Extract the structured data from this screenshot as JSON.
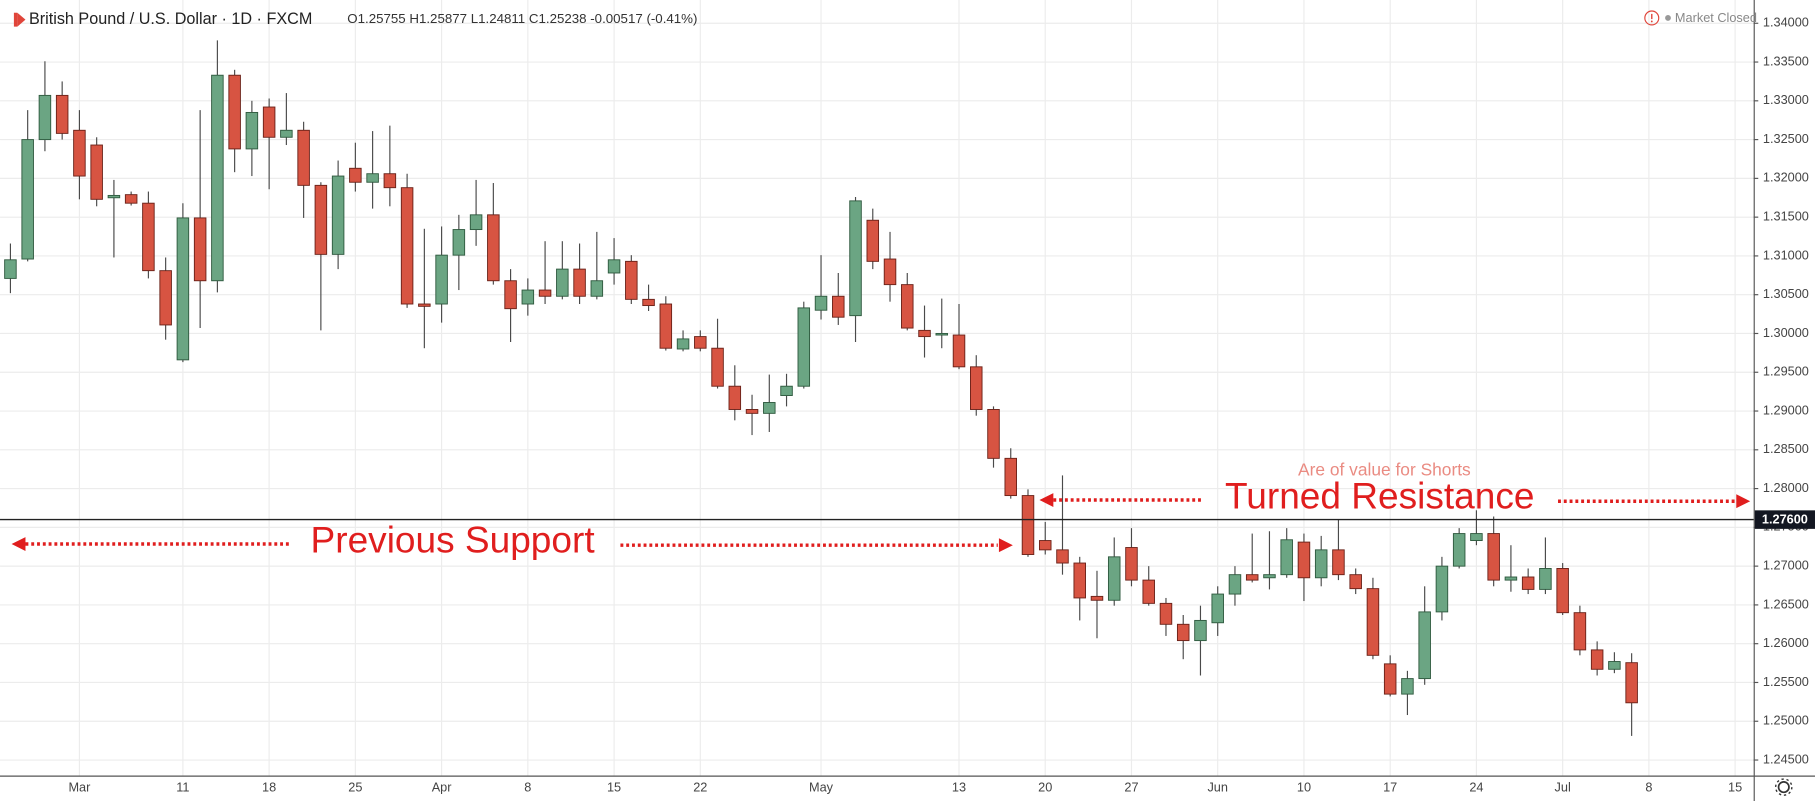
{
  "header": {
    "symbol": "British Pound / U.S. Dollar · 1D · FXCM",
    "ohlc": "O1.25755 H1.25877 L1.24811 C1.25238 -0.00517 (-0.41%)",
    "status": "Market Closed"
  },
  "chart_data": {
    "type": "candlestick",
    "categories": [
      null,
      null,
      null,
      null,
      "Mar",
      null,
      null,
      null,
      null,
      null,
      "11",
      null,
      null,
      null,
      null,
      "18",
      null,
      null,
      null,
      null,
      "25",
      null,
      null,
      null,
      null,
      "Apr",
      null,
      null,
      null,
      null,
      "8",
      null,
      null,
      null,
      null,
      "15",
      null,
      null,
      null,
      null,
      "22",
      null,
      null,
      null,
      null,
      null,
      null,
      "May",
      null,
      null,
      null,
      null,
      null,
      null,
      null,
      "13",
      null,
      null,
      null,
      null,
      "20",
      null,
      null,
      null,
      null,
      "27",
      null,
      null,
      null,
      null,
      "Jun",
      null,
      null,
      null,
      null,
      "10",
      null,
      null,
      null,
      null,
      "17",
      null,
      null,
      null,
      null,
      "24",
      null,
      null,
      null,
      null,
      "Jul",
      null,
      null,
      null,
      null,
      "8",
      null,
      null,
      null,
      null,
      "15"
    ],
    "open": [
      1.3071,
      1.3096,
      1.325,
      1.3307,
      1.3262,
      1.3243,
      1.3175,
      1.3179,
      1.3168,
      1.3081,
      1.2966,
      1.3149,
      1.3068,
      1.3333,
      1.3238,
      1.3292,
      1.3253,
      1.3262,
      1.3191,
      1.3102,
      1.3213,
      1.3195,
      1.3206,
      1.3188,
      1.3038,
      1.3038,
      1.3101,
      1.3134,
      1.3153,
      1.3068,
      1.3038,
      1.3056,
      1.3048,
      1.3083,
      1.3048,
      1.3078,
      1.3093,
      1.3044,
      1.3038,
      1.298,
      1.2996,
      1.2981,
      1.2932,
      1.2902,
      1.2897,
      1.292,
      1.2932,
      1.303,
      1.3048,
      1.3023,
      1.3146,
      1.3096,
      1.3063,
      1.3004,
      1.2998,
      1.2998,
      1.2957,
      1.2902,
      1.2839,
      1.2791,
      1.2733,
      1.2721,
      1.2704,
      1.2661,
      1.2656,
      1.2724,
      1.2682,
      1.2652,
      1.2625,
      1.2604,
      1.2627,
      1.2664,
      1.2689,
      1.2685,
      1.2689,
      1.2731,
      1.2685,
      1.2721,
      1.2689,
      1.2671,
      1.2574,
      1.2535,
      1.2555,
      1.2641,
      1.27,
      1.2733,
      1.2742,
      1.2682,
      1.2686,
      1.267,
      1.2697,
      1.264,
      1.2592,
      1.2567,
      1.25755,
      null,
      null,
      null,
      null,
      null,
      null
    ],
    "high": [
      1.3116,
      1.3288,
      1.3351,
      1.3325,
      1.3288,
      1.3253,
      1.3198,
      1.3183,
      1.3183,
      1.3098,
      1.3168,
      1.3288,
      1.3378,
      1.334,
      1.33,
      1.3303,
      1.331,
      1.3273,
      1.3195,
      1.3223,
      1.3246,
      1.3261,
      1.3268,
      1.3206,
      1.3135,
      1.3138,
      1.3153,
      1.3198,
      1.3194,
      1.3083,
      1.3071,
      1.3119,
      1.3119,
      1.3116,
      1.3131,
      1.3123,
      1.3101,
      1.3063,
      1.3048,
      1.3004,
      1.3004,
      1.3019,
      1.2959,
      1.2921,
      1.2947,
      1.2948,
      1.3041,
      1.3101,
      1.3078,
      1.3176,
      1.3161,
      1.3131,
      1.3078,
      1.3036,
      1.3045,
      1.3038,
      1.2972,
      1.2906,
      1.2852,
      1.2799,
      1.2757,
      1.2817,
      1.2712,
      1.2694,
      1.2737,
      1.2749,
      1.27,
      1.2659,
      1.2637,
      1.2649,
      1.2674,
      1.27,
      1.2742,
      1.2745,
      1.2749,
      1.2742,
      1.2739,
      1.276,
      1.2697,
      1.2685,
      1.2585,
      1.2565,
      1.2674,
      1.2712,
      1.2749,
      1.2772,
      1.2764,
      1.2727,
      1.2697,
      1.2737,
      1.2704,
      1.2649,
      1.2603,
      1.2589,
      1.25877,
      null,
      null,
      null,
      null,
      null,
      null
    ],
    "low": [
      1.3052,
      1.3093,
      1.3235,
      1.325,
      1.3173,
      1.3164,
      1.3098,
      1.3165,
      1.3071,
      1.2992,
      1.2963,
      1.3007,
      1.3053,
      1.3208,
      1.3203,
      1.3186,
      1.3243,
      1.3149,
      1.3004,
      1.3083,
      1.3183,
      1.3161,
      1.3164,
      1.3033,
      1.2981,
      1.3014,
      1.3056,
      1.3113,
      1.3063,
      1.2989,
      1.3023,
      1.3038,
      1.3044,
      1.3038,
      1.3044,
      1.3063,
      1.3038,
      1.3029,
      1.2978,
      1.2977,
      1.2977,
      1.2929,
      1.2888,
      1.2869,
      1.2873,
      1.2906,
      1.2929,
      1.3018,
      1.3011,
      1.2989,
      1.3083,
      1.3041,
      1.3004,
      1.2969,
      1.2981,
      1.2954,
      1.2894,
      1.2827,
      1.2787,
      1.2712,
      1.2715,
      1.2689,
      1.263,
      1.2607,
      1.2649,
      1.2674,
      1.2649,
      1.261,
      1.258,
      1.2559,
      1.261,
      1.2649,
      1.2679,
      1.267,
      1.2685,
      1.2655,
      1.2674,
      1.2682,
      1.2664,
      1.258,
      1.2532,
      1.2508,
      1.2547,
      1.263,
      1.2697,
      1.2727,
      1.2674,
      1.2667,
      1.2664,
      1.2664,
      1.2637,
      1.2585,
      1.2559,
      1.2562,
      1.24811,
      null,
      null,
      null,
      null,
      null,
      null
    ],
    "close": [
      1.3095,
      1.325,
      1.3307,
      1.3258,
      1.3203,
      1.3173,
      1.3178,
      1.3168,
      1.3081,
      1.3011,
      1.3149,
      1.3068,
      1.3333,
      1.3238,
      1.3285,
      1.3253,
      1.3262,
      1.3191,
      1.3102,
      1.3203,
      1.3195,
      1.3206,
      1.3188,
      1.3038,
      1.3035,
      1.3101,
      1.3134,
      1.3153,
      1.3068,
      1.3032,
      1.3056,
      1.3048,
      1.3083,
      1.3048,
      1.3068,
      1.3095,
      1.3044,
      1.3036,
      1.2981,
      1.2993,
      1.2981,
      1.2932,
      1.2902,
      1.2897,
      1.2911,
      1.2932,
      1.3033,
      1.3048,
      1.3021,
      1.3171,
      1.3093,
      1.3063,
      1.3007,
      1.2996,
      1.3,
      1.2957,
      1.2902,
      1.2839,
      1.2791,
      1.2715,
      1.2721,
      1.2704,
      1.2659,
      1.2656,
      1.2712,
      1.2682,
      1.2652,
      1.2625,
      1.2604,
      1.263,
      1.2664,
      1.2689,
      1.2682,
      1.2689,
      1.2734,
      1.2685,
      1.2721,
      1.2689,
      1.2671,
      1.2585,
      1.2535,
      1.2555,
      1.2641,
      1.27,
      1.2742,
      1.2742,
      1.2682,
      1.2686,
      1.267,
      1.2697,
      1.264,
      1.2592,
      1.2567,
      1.2577,
      1.25238,
      null,
      null,
      null,
      null,
      null,
      null
    ],
    "up_color": "#6ba583",
    "down_color": "#d75442",
    "wick_color": "#4a4a4a",
    "ylim": [
      1.243,
      1.343
    ],
    "yticks": [
      {
        "value": 1.245,
        "label": "1.24500"
      },
      {
        "value": 1.25,
        "label": "1.25000"
      },
      {
        "value": 1.255,
        "label": "1.25500"
      },
      {
        "value": 1.26,
        "label": "1.26000"
      },
      {
        "value": 1.265,
        "label": "1.26500"
      },
      {
        "value": 1.27,
        "label": "1.27000"
      },
      {
        "value": 1.275,
        "label": "1.27500"
      },
      {
        "value": 1.28,
        "label": "1.28000"
      },
      {
        "value": 1.285,
        "label": "1.28500"
      },
      {
        "value": 1.29,
        "label": "1.29000"
      },
      {
        "value": 1.295,
        "label": "1.29500"
      },
      {
        "value": 1.3,
        "label": "1.30000"
      },
      {
        "value": 1.305,
        "label": "1.30500"
      },
      {
        "value": 1.31,
        "label": "1.31000"
      },
      {
        "value": 1.315,
        "label": "1.31500"
      },
      {
        "value": 1.32,
        "label": "1.32000"
      },
      {
        "value": 1.325,
        "label": "1.32500"
      },
      {
        "value": 1.33,
        "label": "1.33000"
      },
      {
        "value": 1.335,
        "label": "1.33500"
      },
      {
        "value": 1.34,
        "label": "1.34000"
      }
    ],
    "grid": true,
    "hline": {
      "value": 1.276,
      "label": "1.27600"
    },
    "annotations": [
      "Are of value for Shorts",
      "Turned Resistance",
      "Previous Support"
    ]
  }
}
